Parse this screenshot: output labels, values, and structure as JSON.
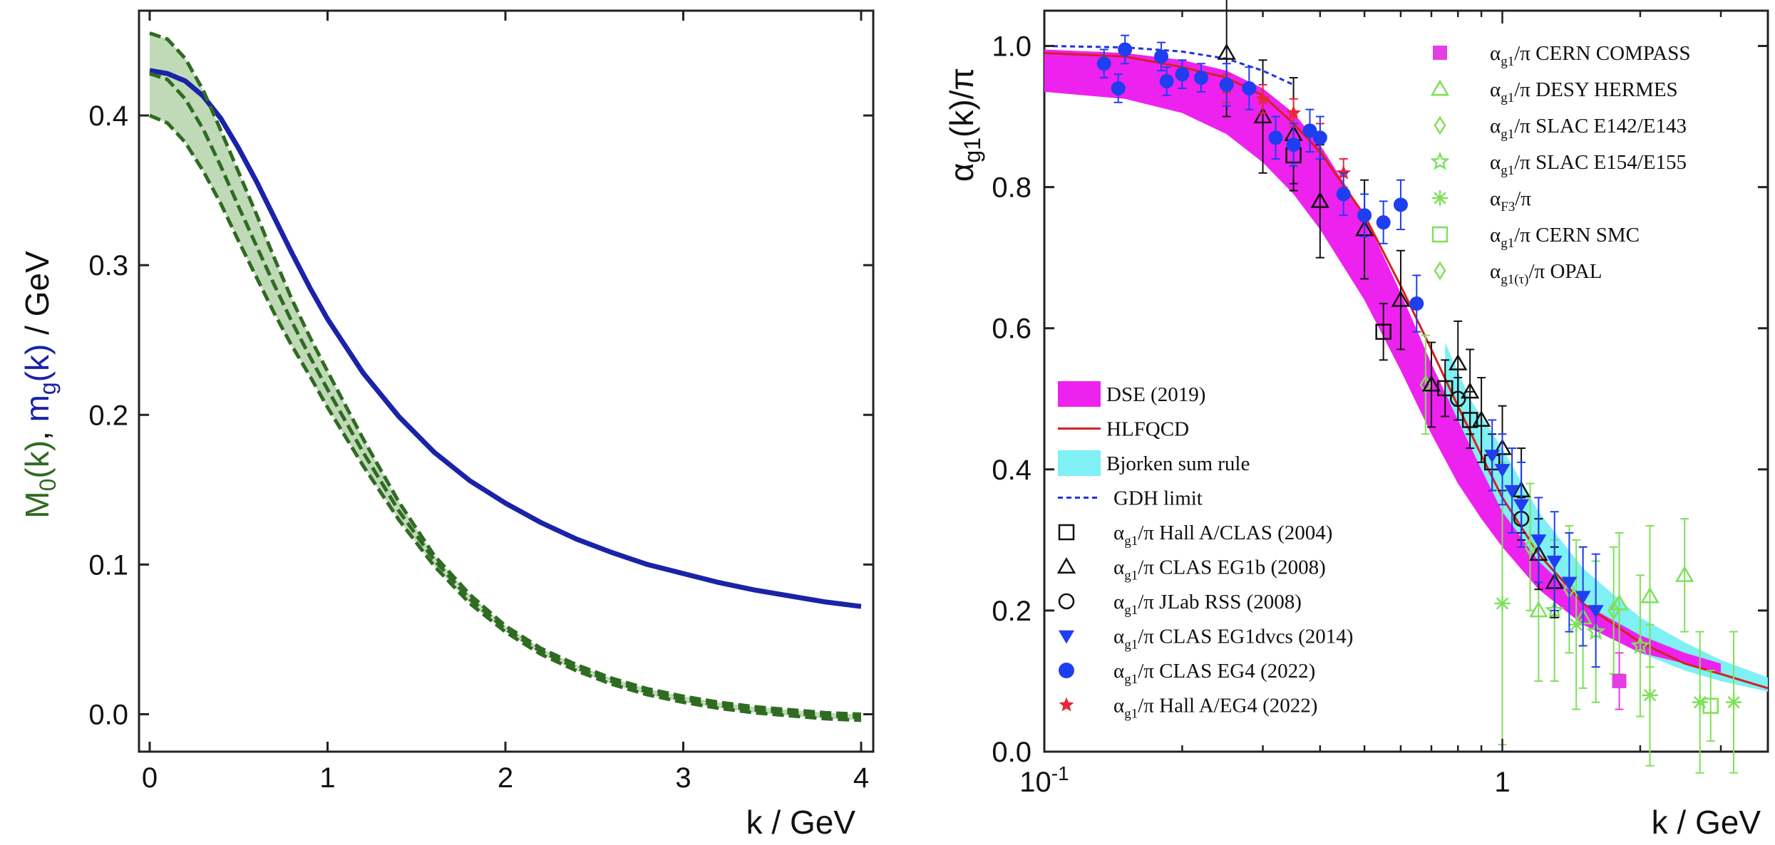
{
  "chart_data": [
    {
      "type": "line",
      "panel": "left",
      "title": "",
      "xlabel": "k / GeV",
      "ylabel_parts": {
        "m0": "M",
        "m0_sub": "0",
        "m0_arg": "(k)",
        "sep": ", ",
        "mg": "m",
        "mg_sub": "g",
        "mg_arg": "(k)",
        "unit": " / GeV"
      },
      "xlim": [
        0,
        4
      ],
      "ylim": [
        -0.025,
        0.47
      ],
      "x_ticks": [
        0,
        1,
        2,
        3,
        4
      ],
      "y_ticks": [
        0.0,
        0.1,
        0.2,
        0.3,
        0.4
      ],
      "x_tick_labels": [
        "0",
        "1",
        "2",
        "3",
        "4"
      ],
      "y_tick_labels": [
        "0.0",
        "0.1",
        "0.2",
        "0.3",
        "0.4"
      ],
      "colors": {
        "mg": "#1a23a8",
        "m0": "#2f6b22",
        "band": "#b9d6b0"
      },
      "series": [
        {
          "name": "m_g(k)",
          "style": "solid",
          "x": [
            0,
            0.1,
            0.2,
            0.3,
            0.4,
            0.5,
            0.6,
            0.7,
            0.8,
            0.9,
            1.0,
            1.2,
            1.4,
            1.6,
            1.8,
            2.0,
            2.2,
            2.4,
            2.6,
            2.8,
            3.0,
            3.2,
            3.4,
            3.6,
            3.8,
            4.0
          ],
          "y": [
            0.43,
            0.428,
            0.423,
            0.413,
            0.398,
            0.378,
            0.356,
            0.332,
            0.308,
            0.285,
            0.264,
            0.228,
            0.199,
            0.175,
            0.156,
            0.141,
            0.128,
            0.117,
            0.108,
            0.1,
            0.094,
            0.088,
            0.083,
            0.079,
            0.075,
            0.072
          ]
        },
        {
          "name": "M_0(k) upper",
          "style": "dashed",
          "x": [
            0,
            0.1,
            0.2,
            0.3,
            0.4,
            0.5,
            0.6,
            0.7,
            0.8,
            0.9,
            1.0,
            1.2,
            1.4,
            1.6,
            1.8,
            2.0,
            2.2,
            2.4,
            2.6,
            2.8,
            3.0,
            3.2,
            3.4,
            3.6,
            3.8,
            4.0
          ],
          "y": [
            0.455,
            0.451,
            0.438,
            0.417,
            0.39,
            0.362,
            0.334,
            0.305,
            0.277,
            0.252,
            0.229,
            0.184,
            0.142,
            0.106,
            0.08,
            0.059,
            0.044,
            0.033,
            0.024,
            0.017,
            0.012,
            0.008,
            0.005,
            0.003,
            0.001,
            0.0
          ]
        },
        {
          "name": "M_0(k) central",
          "style": "dashed",
          "x": [
            0,
            0.1,
            0.2,
            0.3,
            0.4,
            0.5,
            0.6,
            0.7,
            0.8,
            0.9,
            1.0,
            1.2,
            1.4,
            1.6,
            1.8,
            2.0,
            2.2,
            2.4,
            2.6,
            2.8,
            3.0,
            3.2,
            3.4,
            3.6,
            3.8,
            4.0
          ],
          "y": [
            0.428,
            0.424,
            0.411,
            0.391,
            0.366,
            0.339,
            0.313,
            0.287,
            0.262,
            0.239,
            0.217,
            0.175,
            0.136,
            0.103,
            0.077,
            0.057,
            0.042,
            0.031,
            0.022,
            0.015,
            0.01,
            0.006,
            0.003,
            0.001,
            -0.001,
            -0.002
          ]
        },
        {
          "name": "M_0(k) lower",
          "style": "dashed",
          "x": [
            0,
            0.1,
            0.2,
            0.3,
            0.4,
            0.5,
            0.6,
            0.7,
            0.8,
            0.9,
            1.0,
            1.2,
            1.4,
            1.6,
            1.8,
            2.0,
            2.2,
            2.4,
            2.6,
            2.8,
            3.0,
            3.2,
            3.4,
            3.6,
            3.8,
            4.0
          ],
          "y": [
            0.4,
            0.395,
            0.382,
            0.363,
            0.341,
            0.316,
            0.292,
            0.268,
            0.246,
            0.226,
            0.205,
            0.166,
            0.13,
            0.099,
            0.074,
            0.055,
            0.04,
            0.029,
            0.02,
            0.013,
            0.008,
            0.004,
            0.001,
            -0.001,
            -0.003,
            -0.004
          ]
        }
      ]
    },
    {
      "type": "scatter",
      "panel": "right",
      "xscale": "log",
      "xlabel": "k / GeV",
      "ylabel_parts": {
        "a": "α",
        "sub": "g1",
        "arg": "(k)/π"
      },
      "xlim": [
        0.1,
        3.8
      ],
      "ylim": [
        0.0,
        1.05
      ],
      "x_tick_labels": [
        {
          "base": "10",
          "sup": "-1",
          "at": 0.1
        },
        {
          "base": "1",
          "sup": "",
          "at": 1.0
        }
      ],
      "y_ticks": [
        0.0,
        0.2,
        0.4,
        0.6,
        0.8,
        1.0
      ],
      "y_tick_labels": [
        "0.0",
        "0.2",
        "0.4",
        "0.6",
        "0.8",
        "1.0"
      ],
      "colors": {
        "dse": "#ee22ee",
        "hlfqcd": "#d62020",
        "bjorken": "#7ff0f4",
        "gdh": "#2233dd",
        "black": "#111111",
        "blue": "#1f3ef0",
        "red": "#e8283a",
        "green": "#7ee05a",
        "magenta": "#e33de3"
      },
      "legend_left": [
        {
          "key": "dse",
          "label": "DSE (2019)",
          "marker": "band"
        },
        {
          "key": "hlfqcd",
          "label": "HLFQCD",
          "marker": "line"
        },
        {
          "key": "bjorken",
          "label": "Bjorken sum rule",
          "marker": "band"
        },
        {
          "key": "gdh",
          "label": "GDH limit",
          "marker": "dashed"
        },
        {
          "key": "halla",
          "a": "α",
          "sub": "g1",
          "rest": "/π Hall A/CLAS (2004)",
          "marker": "open-square"
        },
        {
          "key": "eg1b",
          "a": "α",
          "sub": "g1",
          "rest": "/π CLAS EG1b (2008)",
          "marker": "open-triangle"
        },
        {
          "key": "rss",
          "a": "α",
          "sub": "g1",
          "rest": "/π JLab RSS (2008)",
          "marker": "open-circle"
        },
        {
          "key": "eg1dvcs",
          "a": "α",
          "sub": "g1",
          "rest": "/π CLAS EG1dvcs (2014)",
          "marker": "down-triangle"
        },
        {
          "key": "eg4",
          "a": "α",
          "sub": "g1",
          "rest": "/π CLAS EG4 (2022)",
          "marker": "filled-circle"
        },
        {
          "key": "hallaeg4",
          "a": "α",
          "sub": "g1",
          "rest": "/π Hall A/EG4 (2022)",
          "marker": "star"
        }
      ],
      "legend_right": [
        {
          "key": "compass",
          "a": "α",
          "sub": "g1",
          "rest": "/π CERN COMPASS",
          "marker": "filled-square"
        },
        {
          "key": "hermes",
          "a": "α",
          "sub": "g1",
          "rest": "/π DESY HERMES",
          "marker": "open-triangle"
        },
        {
          "key": "e142",
          "a": "α",
          "sub": "g1",
          "rest": "/π SLAC E142/E143",
          "marker": "diamond"
        },
        {
          "key": "e154",
          "a": "α",
          "sub": "g1",
          "rest": "/π SLAC E154/E155",
          "marker": "open-star"
        },
        {
          "key": "f3",
          "a": "α",
          "sub": "F3",
          "rest": "/π",
          "marker": "asterisk"
        },
        {
          "key": "smc",
          "a": "α",
          "sub": "g1",
          "rest": "/π CERN SMC",
          "marker": "open-square"
        },
        {
          "key": "opal",
          "a": "α",
          "sub": "g1(τ)",
          "rest": "/π OPAL",
          "marker": "diamond"
        }
      ],
      "bands": {
        "dse": {
          "x": [
            0.1,
            0.15,
            0.2,
            0.25,
            0.3,
            0.35,
            0.4,
            0.5,
            0.6,
            0.7,
            0.8,
            0.9,
            1.0,
            1.2,
            1.5,
            2.0,
            2.5,
            3.0
          ],
          "lo": [
            0.935,
            0.925,
            0.905,
            0.875,
            0.835,
            0.79,
            0.74,
            0.64,
            0.54,
            0.45,
            0.38,
            0.33,
            0.29,
            0.23,
            0.18,
            0.14,
            0.125,
            0.112
          ],
          "hi": [
            0.995,
            0.99,
            0.98,
            0.965,
            0.94,
            0.905,
            0.86,
            0.76,
            0.65,
            0.55,
            0.47,
            0.4,
            0.34,
            0.27,
            0.21,
            0.165,
            0.14,
            0.125
          ]
        },
        "bjorken": {
          "x": [
            0.75,
            0.85,
            1.0,
            1.2,
            1.5,
            2.0,
            2.5,
            3.0,
            3.8
          ],
          "lo": [
            0.5,
            0.42,
            0.34,
            0.26,
            0.19,
            0.14,
            0.115,
            0.1,
            0.085
          ],
          "hi": [
            0.58,
            0.5,
            0.43,
            0.34,
            0.26,
            0.19,
            0.155,
            0.13,
            0.105
          ]
        }
      },
      "lines": {
        "hlfqcd": {
          "x": [
            0.1,
            0.15,
            0.2,
            0.25,
            0.3,
            0.35,
            0.4,
            0.5,
            0.6,
            0.7,
            0.8,
            0.9,
            1.0,
            1.2,
            1.5,
            2.0,
            2.5,
            3.0,
            3.8
          ],
          "y": [
            0.99,
            0.985,
            0.97,
            0.955,
            0.93,
            0.89,
            0.85,
            0.76,
            0.66,
            0.57,
            0.49,
            0.42,
            0.36,
            0.28,
            0.21,
            0.155,
            0.125,
            0.11,
            0.09
          ]
        },
        "gdh": {
          "x": [
            0.1,
            0.15,
            0.2,
            0.25,
            0.3,
            0.35
          ],
          "y": [
            1.0,
            0.998,
            0.992,
            0.982,
            0.965,
            0.945
          ]
        }
      },
      "points": {
        "eg4": {
          "x": [
            0.135,
            0.145,
            0.15,
            0.18,
            0.185,
            0.2,
            0.22,
            0.25,
            0.28,
            0.32,
            0.35,
            0.38,
            0.4,
            0.45,
            0.5,
            0.55,
            0.6,
            0.65
          ],
          "y": [
            0.975,
            0.94,
            0.995,
            0.985,
            0.95,
            0.96,
            0.955,
            0.945,
            0.94,
            0.87,
            0.86,
            0.88,
            0.87,
            0.79,
            0.76,
            0.75,
            0.775,
            0.635
          ],
          "err": [
            0.02,
            0.02,
            0.02,
            0.02,
            0.02,
            0.02,
            0.02,
            0.03,
            0.03,
            0.03,
            0.03,
            0.03,
            0.03,
            0.03,
            0.03,
            0.03,
            0.035,
            0.04
          ]
        },
        "hallaeg4": {
          "x": [
            0.2,
            0.25,
            0.3,
            0.35,
            0.4,
            0.45
          ],
          "y": [
            0.96,
            0.94,
            0.925,
            0.905,
            0.87,
            0.82
          ],
          "err": [
            0.02,
            0.02,
            0.02,
            0.02,
            0.02,
            0.02
          ]
        },
        "eg1b": {
          "x": [
            0.25,
            0.3,
            0.35,
            0.4,
            0.5,
            0.6,
            0.7,
            0.8,
            0.85,
            0.9,
            1.0,
            1.1,
            1.2,
            1.3
          ],
          "y": [
            0.99,
            0.9,
            0.875,
            0.78,
            0.74,
            0.64,
            0.52,
            0.55,
            0.51,
            0.47,
            0.43,
            0.37,
            0.28,
            0.24
          ],
          "err": [
            0.09,
            0.08,
            0.08,
            0.08,
            0.07,
            0.07,
            0.06,
            0.06,
            0.06,
            0.06,
            0.06,
            0.06,
            0.05,
            0.05
          ]
        },
        "halla": {
          "x": [
            0.35,
            0.55,
            0.75,
            0.85,
            0.95
          ],
          "y": [
            0.845,
            0.595,
            0.515,
            0.47,
            0.41
          ],
          "err": [
            0.04,
            0.04,
            0.04,
            0.04,
            0.04
          ]
        },
        "rss": {
          "x": [
            0.8,
            1.1
          ],
          "y": [
            0.5,
            0.33
          ],
          "err": [
            0.03,
            0.03
          ]
        },
        "eg1dvcs": {
          "x": [
            0.95,
            1.0,
            1.05,
            1.1,
            1.2,
            1.3,
            1.4,
            1.5,
            1.6
          ],
          "y": [
            0.42,
            0.4,
            0.37,
            0.35,
            0.3,
            0.27,
            0.24,
            0.22,
            0.2
          ],
          "err": [
            0.05,
            0.05,
            0.06,
            0.06,
            0.06,
            0.07,
            0.07,
            0.07,
            0.08
          ]
        },
        "compass": {
          "x": [
            1.8
          ],
          "y": [
            0.1
          ],
          "err": [
            0.04
          ]
        },
        "hermes": {
          "x": [
            1.2,
            1.5,
            1.8,
            2.1,
            2.5
          ],
          "y": [
            0.2,
            0.19,
            0.21,
            0.22,
            0.25
          ],
          "err": [
            0.1,
            0.1,
            0.1,
            0.1,
            0.08
          ]
        },
        "e142": {
          "x": [
            1.15,
            1.4,
            1.75
          ],
          "y": [
            0.29,
            0.23,
            0.2
          ],
          "err": [
            0.09,
            0.09,
            0.09
          ]
        },
        "e154": {
          "x": [
            1.3,
            1.6,
            2.0
          ],
          "y": [
            0.2,
            0.17,
            0.15
          ],
          "err": [
            0.1,
            0.1,
            0.1
          ]
        },
        "f3": {
          "x": [
            1.0,
            1.45,
            2.1,
            2.7,
            3.2
          ],
          "y": [
            0.21,
            0.18,
            0.08,
            0.07,
            0.07
          ],
          "err": [
            0.2,
            0.12,
            0.1,
            0.1,
            0.1
          ]
        },
        "smc": {
          "x": [
            2.85
          ],
          "y": [
            0.065
          ],
          "err": [
            0.05
          ]
        },
        "opal": {
          "x": [
            0.68
          ],
          "y": [
            0.52
          ],
          "err": [
            0.07
          ]
        }
      }
    }
  ]
}
